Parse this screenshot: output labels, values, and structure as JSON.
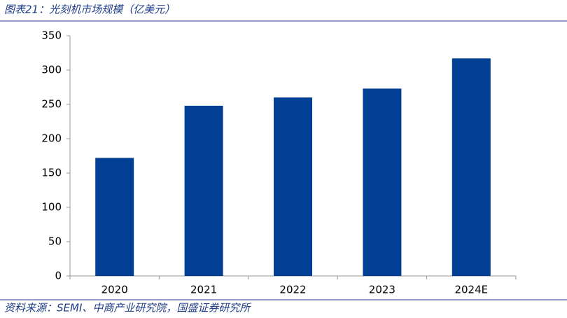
{
  "chart_data": {
    "type": "bar",
    "title": "图表21：光刻机市场规模（亿美元）",
    "categories": [
      "2020",
      "2021",
      "2022",
      "2023",
      "2024E"
    ],
    "values": [
      172,
      248,
      260,
      273,
      317
    ],
    "color": "#003f94",
    "ylim": [
      0,
      350
    ],
    "yticks": [
      0,
      50,
      100,
      150,
      200,
      250,
      300,
      350
    ],
    "grid": false,
    "source": "资料来源：SEMI、中商产业研究院，国盛证券研究所"
  }
}
